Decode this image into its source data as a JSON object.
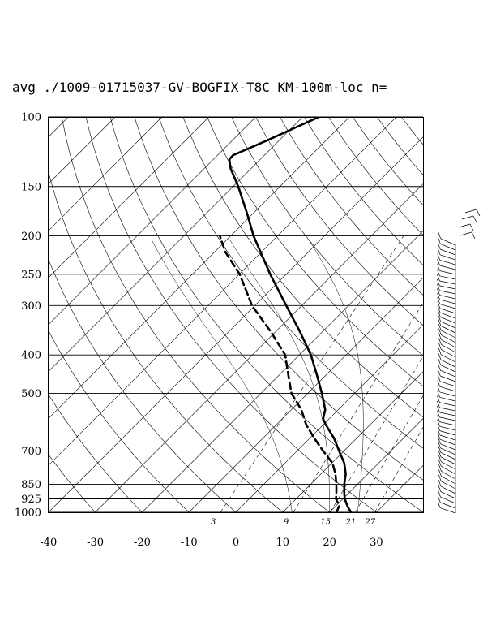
{
  "chart_data": {
    "type": "line",
    "title": "avg ./1009-01715037-GV-BOGFIX-T8C KM-100m-loc n=",
    "x_tick_labels": [
      "-40",
      "-30",
      "-20",
      "-10",
      "0",
      "10",
      "20",
      "30"
    ],
    "x_ticks": [
      -40,
      -30,
      -20,
      -10,
      0,
      10,
      20,
      30
    ],
    "y_tick_labels": [
      "100",
      "150",
      "200",
      "250",
      "300",
      "400",
      "500",
      "700",
      "850",
      "925",
      "1000"
    ],
    "y_ticks": [
      100,
      150,
      200,
      250,
      300,
      400,
      500,
      700,
      850,
      925,
      1000
    ],
    "y_scale": "log",
    "ylim": [
      1000,
      100
    ],
    "xlim_at_1000hPa": [
      -40,
      40
    ],
    "mixing_ratio_labels": [
      "3",
      "9",
      "15",
      "21",
      "27"
    ],
    "series": [
      {
        "style": "solid",
        "points": [
          {
            "p": 1000,
            "t": 24.6
          },
          {
            "p": 970,
            "t": 22.8
          },
          {
            "p": 925,
            "t": 20.4
          },
          {
            "p": 900,
            "t": 19.3
          },
          {
            "p": 850,
            "t": 17.2
          },
          {
            "p": 800,
            "t": 15.3
          },
          {
            "p": 750,
            "t": 12.6
          },
          {
            "p": 700,
            "t": 9.0
          },
          {
            "p": 650,
            "t": 5.2
          },
          {
            "p": 600,
            "t": 0.5
          },
          {
            "p": 580,
            "t": -1.3
          },
          {
            "p": 550,
            "t": -2.8
          },
          {
            "p": 500,
            "t": -7.0
          },
          {
            "p": 450,
            "t": -11.9
          },
          {
            "p": 400,
            "t": -17.5
          },
          {
            "p": 350,
            "t": -24.7
          },
          {
            "p": 300,
            "t": -33.3
          },
          {
            "p": 250,
            "t": -43.4
          },
          {
            "p": 200,
            "t": -55.1
          },
          {
            "p": 175,
            "t": -61.4
          },
          {
            "p": 150,
            "t": -68.9
          },
          {
            "p": 135,
            "t": -74.4
          },
          {
            "p": 128,
            "t": -76.6
          },
          {
            "p": 125,
            "t": -76.7
          },
          {
            "p": 115,
            "t": -72.7
          },
          {
            "p": 100,
            "t": -66.5
          }
        ]
      },
      {
        "style": "dashed",
        "points": [
          {
            "p": 1000,
            "t": 21.5
          },
          {
            "p": 960,
            "t": 20.6
          },
          {
            "p": 925,
            "t": 18.5
          },
          {
            "p": 900,
            "t": 17.6
          },
          {
            "p": 850,
            "t": 15.5
          },
          {
            "p": 800,
            "t": 13.1
          },
          {
            "p": 750,
            "t": 10.1
          },
          {
            "p": 700,
            "t": 5.6
          },
          {
            "p": 650,
            "t": 1.0
          },
          {
            "p": 600,
            "t": -3.7
          },
          {
            "p": 550,
            "t": -7.9
          },
          {
            "p": 500,
            "t": -13.5
          },
          {
            "p": 450,
            "t": -18.0
          },
          {
            "p": 400,
            "t": -23.0
          },
          {
            "p": 350,
            "t": -30.9
          },
          {
            "p": 300,
            "t": -40.6
          },
          {
            "p": 250,
            "t": -49.9
          },
          {
            "p": 220,
            "t": -57.6
          },
          {
            "p": 200,
            "t": -62.3
          }
        ]
      }
    ],
    "wind_barbs": "column of wind barbs from 1000 to about 170 hPa, shown at right"
  }
}
